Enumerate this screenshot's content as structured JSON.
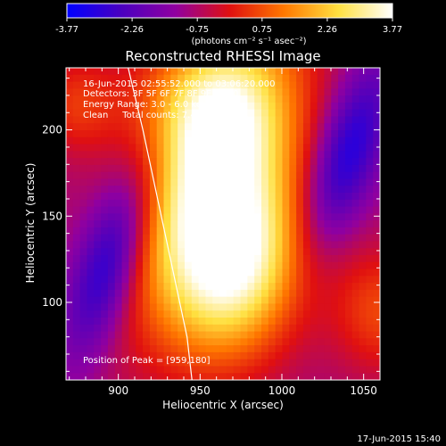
{
  "chart_data": {
    "type": "heatmap",
    "title": "Reconstructed RHESSI Image",
    "xlabel": "Heliocentric X (arcsec)",
    "ylabel": "Heliocentric Y (arcsec)",
    "xlim": [
      868,
      1060
    ],
    "ylim": [
      55,
      236
    ],
    "x_ticks": [
      900,
      950,
      1000,
      1050
    ],
    "y_ticks": [
      100,
      150,
      200
    ],
    "colorbar": {
      "min": -3.77,
      "max": 3.77,
      "ticks": [
        "-3.77",
        "-2.26",
        "-0.75",
        "0.75",
        "2.26",
        "3.77"
      ],
      "unit_label": "(photons cm⁻² s⁻¹ asec⁻²)",
      "colormap": [
        "#0000ff",
        "#4a00c0",
        "#9000a0",
        "#e01010",
        "#ff7800",
        "#ffe040",
        "#ffffff"
      ]
    },
    "annotations": [
      "16-Jun-2015 02:55:52.000 to 03:06:20.000",
      "Detectors: 3F 5F 6F 7F 8F 9F, Att 0",
      "Energy Range: 3.0 - 6.0 keV",
      "Clean     Total counts: 7.41E+05"
    ],
    "peak_label": "Position of Peak = [959,180]",
    "peak": [
      959,
      180
    ],
    "limb_curve": [
      [
        906,
        236
      ],
      [
        915,
        200
      ],
      [
        924,
        160
      ],
      [
        933,
        120
      ],
      [
        942,
        80
      ],
      [
        945,
        55
      ]
    ],
    "timestamp": "17-Jun-2015 15:40"
  }
}
